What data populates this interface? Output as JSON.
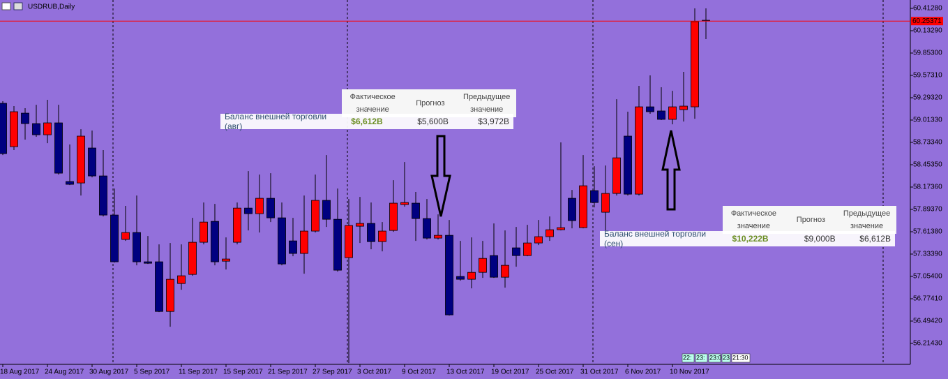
{
  "chart_data": {
    "type": "candlestick",
    "title": "USDRUB,Daily",
    "categories": [
      "18 Aug 2017",
      null,
      null,
      null,
      "24 Aug 2017",
      null,
      null,
      null,
      "30 Aug 2017",
      null,
      null,
      null,
      "5 Sep 2017",
      null,
      null,
      null,
      "11 Sep 2017",
      null,
      null,
      null,
      "15 Sep 2017",
      null,
      null,
      null,
      "21 Sep 2017",
      null,
      null,
      null,
      "27 Sep 2017",
      null,
      null,
      null,
      "3 Oct 2017",
      null,
      null,
      null,
      "9 Oct 2017",
      null,
      null,
      null,
      "13 Oct 2017",
      null,
      null,
      null,
      "19 Oct 2017",
      null,
      null,
      null,
      "25 Oct 2017",
      null,
      null,
      null,
      "31 Oct 2017",
      null,
      null,
      null,
      "6 Nov 2017",
      null,
      null,
      null,
      "10 Nov 2017",
      null,
      null,
      null
    ],
    "open": [
      59.223,
      58.68,
      59.1,
      58.969,
      58.829,
      58.978,
      58.243,
      58.225,
      58.663,
      58.313,
      57.823,
      57.517,
      57.604,
      57.237,
      57.237,
      56.615,
      56.965,
      57.079,
      57.482,
      57.744,
      57.245,
      57.482,
      57.91,
      57.84,
      58.033,
      57.788,
      57.499,
      57.342,
      57.622,
      58.007,
      57.77,
      57.289,
      57.683,
      57.718,
      57.49,
      57.63,
      57.954,
      57.972,
      57.779,
      57.534,
      57.569,
      57.053,
      57.018,
      57.105,
      57.315,
      57.044,
      57.412,
      57.315,
      57.473,
      57.552,
      57.639,
      58.033,
      57.665,
      58.129,
      57.858,
      58.094,
      58.812,
      58.085,
      59.179,
      59.127,
      59.022,
      59.144,
      59.179,
      60.264
    ],
    "high": [
      59.249,
      59.188,
      59.162,
      59.205,
      59.267,
      59.205,
      58.707,
      58.899,
      58.882,
      58.637,
      58.155,
      57.937,
      58.068,
      57.56,
      57.455,
      57.473,
      57.455,
      57.788,
      57.98,
      57.963,
      57.543,
      57.98,
      58.374,
      58.33,
      58.348,
      57.98,
      57.788,
      58.068,
      58.33,
      58.575,
      58.155,
      58.024,
      58.05,
      57.98,
      57.735,
      58.26,
      58.488,
      58.112,
      58.024,
      57.832,
      57.762,
      57.499,
      57.543,
      57.499,
      57.718,
      57.63,
      57.674,
      57.7,
      57.762,
      57.805,
      58.733,
      58.138,
      58.575,
      58.435,
      58.444,
      59.275,
      59.118,
      59.442,
      59.573,
      59.424,
      59.38,
      59.617,
      60.413,
      60.413
    ],
    "low": [
      58.575,
      58.637,
      58.768,
      58.803,
      58.724,
      58.33,
      58.199,
      58.068,
      58.295,
      57.805,
      57.228,
      57.499,
      57.193,
      57.21,
      56.607,
      56.423,
      56.887,
      57.062,
      57.455,
      57.193,
      57.14,
      57.455,
      57.63,
      57.604,
      57.735,
      57.193,
      57.307,
      57.088,
      57.604,
      57.674,
      57.114,
      55.968,
      57.473,
      57.394,
      57.368,
      57.613,
      57.928,
      57.499,
      57.517,
      57.517,
      56.563,
      57.0,
      56.904,
      57.035,
      57.035,
      56.913,
      57.175,
      57.307,
      57.447,
      57.499,
      57.63,
      57.657,
      57.657,
      57.919,
      57.63,
      58.068,
      58.068,
      58.068,
      59.092,
      59.013,
      58.96,
      58.995,
      59.03,
      60.028
    ],
    "close": [
      58.593,
      59.118,
      58.969,
      58.829,
      58.978,
      58.348,
      58.208,
      58.812,
      58.313,
      57.823,
      57.237,
      57.604,
      57.237,
      57.219,
      56.615,
      57.018,
      57.062,
      57.482,
      57.735,
      57.237,
      57.272,
      57.91,
      57.84,
      58.033,
      57.788,
      57.21,
      57.342,
      57.622,
      58.007,
      57.77,
      57.132,
      57.692,
      57.718,
      57.49,
      57.622,
      57.972,
      57.98,
      57.779,
      57.534,
      57.569,
      56.572,
      57.018,
      57.105,
      57.28,
      57.044,
      57.193,
      57.315,
      57.473,
      57.552,
      57.639,
      57.665,
      57.753,
      58.19,
      57.98,
      58.094,
      58.54,
      58.085,
      59.179,
      59.118,
      59.022,
      59.179,
      59.188,
      60.247,
      60.25371
    ],
    "up_color": "#ff0000",
    "down_color": "#000080",
    "ylim": [
      55.952,
      60.5178
    ],
    "yticks": [
      {
        "value": 60.4128,
        "label": "60.41280"
      },
      {
        "value": 60.1329,
        "label": "60.13290"
      },
      {
        "value": 59.853,
        "label": "59.85300"
      },
      {
        "value": 59.5731,
        "label": "59.57310"
      },
      {
        "value": 59.2932,
        "label": "59.29320"
      },
      {
        "value": 59.0133,
        "label": "59.01330"
      },
      {
        "value": 58.7334,
        "label": "58.73340"
      },
      {
        "value": 58.4535,
        "label": "58.45350"
      },
      {
        "value": 58.1736,
        "label": "58.17360"
      },
      {
        "value": 57.8937,
        "label": "57.89370"
      },
      {
        "value": 57.6138,
        "label": "57.61380"
      },
      {
        "value": 57.3339,
        "label": "57.33390"
      },
      {
        "value": 57.054,
        "label": "57.05400"
      },
      {
        "value": 56.7741,
        "label": "56.77410"
      },
      {
        "value": 56.4942,
        "label": "56.49420"
      },
      {
        "value": 56.2143,
        "label": "56.21430"
      }
    ],
    "current_price": 60.25371,
    "current_price_color": "#ff0000",
    "time_markers": [
      "22:",
      "23:",
      "23:0",
      "23",
      "21:30"
    ],
    "annotations": [
      {
        "headers": [
          "Фактическое значение",
          "Прогноз",
          "Предыдущее значение"
        ],
        "event": "Баланс внешней торговли (авг)",
        "actual": "$6,612B",
        "forecast": "$5,600B",
        "previous": "$3,972B"
      },
      {
        "headers": [
          "Фактическое значение",
          "Прогноз",
          "Предыдущее значение"
        ],
        "event": "Баланс внешней торговли (сен)",
        "actual": "$10,222B",
        "forecast": "$9,000B",
        "previous": "$6,612B"
      }
    ]
  }
}
